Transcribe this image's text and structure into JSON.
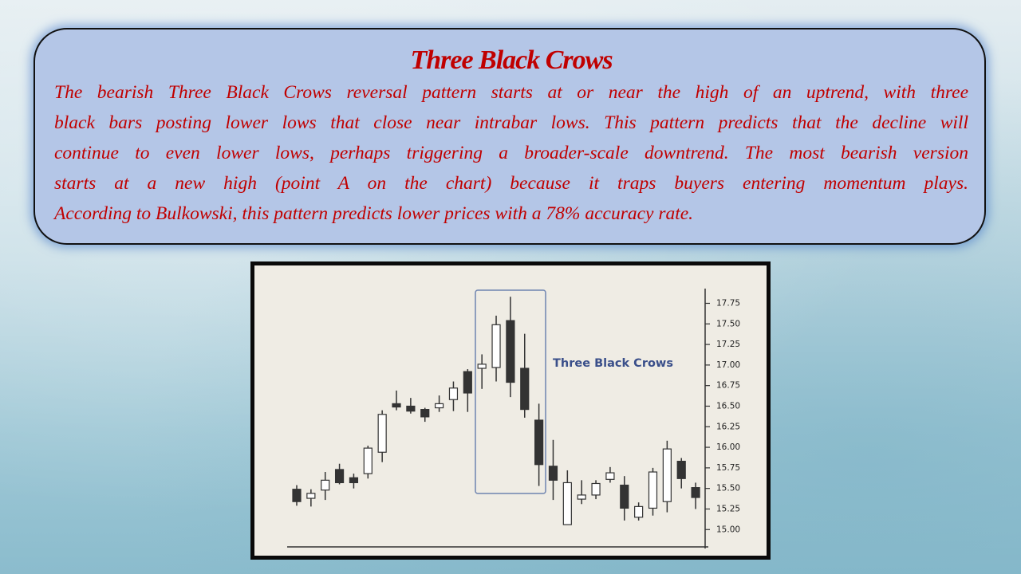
{
  "slide": {
    "title": "Three Black Crows",
    "body_lines": [
      "The bearish Three Black Crows reversal pattern starts at or near the high of an uptrend, with three",
      "black bars posting lower lows that close near intrabar lows. This pattern predicts that the decline will",
      "continue to even lower lows, perhaps triggering a broader-scale downtrend. The most bearish version",
      "starts at a new high (point A on the chart) because it traps buyers entering momentum plays.",
      "According to Bulkowski, this pattern predicts lower prices with a 78% accuracy rate."
    ]
  },
  "chart_data": {
    "type": "candlestick",
    "annotation": "Three Black Crows",
    "open": [
      15.49,
      15.38,
      15.48,
      15.73,
      15.63,
      15.68,
      15.94,
      16.53,
      16.5,
      16.46,
      16.48,
      16.58,
      16.92,
      16.96,
      16.97,
      17.54,
      16.96,
      16.33,
      15.77,
      15.06,
      15.37,
      15.42,
      15.61,
      15.54,
      15.15,
      15.26,
      15.34,
      15.83,
      15.51
    ],
    "high": [
      15.54,
      15.49,
      15.7,
      15.8,
      15.68,
      16.02,
      16.45,
      16.69,
      16.6,
      16.48,
      16.63,
      16.8,
      16.95,
      17.13,
      17.6,
      17.83,
      17.38,
      16.53,
      16.09,
      15.72,
      15.6,
      15.6,
      15.76,
      15.65,
      15.33,
      15.75,
      16.08,
      15.87,
      15.57
    ],
    "low": [
      15.29,
      15.28,
      15.36,
      15.55,
      15.5,
      15.62,
      15.82,
      16.45,
      16.41,
      16.31,
      16.43,
      16.44,
      16.43,
      16.71,
      16.8,
      16.61,
      16.36,
      15.53,
      15.36,
      15.06,
      15.31,
      15.37,
      15.57,
      15.11,
      15.11,
      15.17,
      15.21,
      15.5,
      15.25
    ],
    "close": [
      15.34,
      15.44,
      15.6,
      15.57,
      15.57,
      15.99,
      16.4,
      16.49,
      16.44,
      16.37,
      16.53,
      16.72,
      16.66,
      17.01,
      17.49,
      16.79,
      16.46,
      15.79,
      15.6,
      15.57,
      15.42,
      15.56,
      15.69,
      15.26,
      15.28,
      15.7,
      15.98,
      15.62,
      15.39
    ],
    "up_color": "#ffffff",
    "down_color": "#333333",
    "ylim": [
      14.77,
      17.9
    ],
    "yticks": [
      {
        "value": 15,
        "label": "15.00"
      },
      15.25,
      {
        "value": 15.5,
        "label": "15.50"
      },
      15.75,
      {
        "value": 16,
        "label": "16.00"
      },
      16.25,
      {
        "value": 16.5,
        "label": "16.50"
      },
      16.75,
      {
        "value": 17,
        "label": "17.00"
      },
      17.25,
      {
        "value": 17.5,
        "label": "17.50"
      },
      17.75
    ]
  }
}
